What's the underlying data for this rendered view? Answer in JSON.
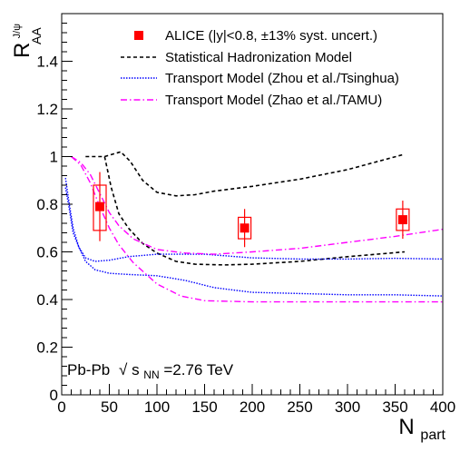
{
  "chart_data": {
    "type": "scatter",
    "xlabel": "N",
    "xlabel_sub": "part",
    "ylabel": "R",
    "ylabel_sub": "AA",
    "ylabel_sup": "J/ψ",
    "xlim": [
      0,
      400
    ],
    "ylim": [
      0,
      1.6
    ],
    "x_ticks": [
      0,
      50,
      100,
      150,
      200,
      250,
      300,
      350,
      400
    ],
    "y_ticks": [
      0,
      0.2,
      0.4,
      0.6,
      0.8,
      1,
      1.2,
      1.4
    ],
    "x_tick_labels": [
      "0",
      "50",
      "100",
      "150",
      "200",
      "250",
      "300",
      "350",
      "400"
    ],
    "y_tick_labels": [
      "0",
      "0.2",
      "0.4",
      "0.6",
      "0.8",
      "1",
      "1.2",
      "1.4"
    ],
    "grid": false,
    "legend_position": "top-right",
    "annotation": {
      "prefix": "Pb-Pb",
      "sqrt_symbol": "√",
      "s_label": "s",
      "s_sub": "NN",
      "value": "=2.76 TeV"
    },
    "colors": {
      "alice": "#ff0000",
      "shm": "#000000",
      "tsinghua": "#0000ff",
      "tamu": "#ff00ff"
    },
    "series": [
      {
        "name": "ALICE (|y|<0.8, ±13% syst. uncert.)",
        "kind": "points",
        "points": [
          {
            "x": 40,
            "y": 0.79,
            "stat_lo": 0.645,
            "stat_hi": 0.935,
            "syst_lo": 0.69,
            "syst_hi": 0.88
          },
          {
            "x": 192,
            "y": 0.7,
            "stat_lo": 0.62,
            "stat_hi": 0.78,
            "syst_lo": 0.655,
            "syst_hi": 0.745
          },
          {
            "x": 358,
            "y": 0.735,
            "stat_lo": 0.655,
            "stat_hi": 0.815,
            "syst_lo": 0.69,
            "syst_hi": 0.78
          }
        ]
      },
      {
        "name": "Statistical Hadronization Model",
        "kind": "band",
        "upper": [
          [
            25,
            1.0
          ],
          [
            45,
            1.0
          ],
          [
            62,
            1.02
          ],
          [
            72,
            0.98
          ],
          [
            85,
            0.9
          ],
          [
            100,
            0.85
          ],
          [
            120,
            0.835
          ],
          [
            140,
            0.84
          ],
          [
            160,
            0.855
          ],
          [
            200,
            0.875
          ],
          [
            250,
            0.905
          ],
          [
            300,
            0.945
          ],
          [
            360,
            1.01
          ]
        ],
        "lower": [
          [
            45,
            1.0
          ],
          [
            52,
            0.87
          ],
          [
            60,
            0.76
          ],
          [
            70,
            0.7
          ],
          [
            85,
            0.635
          ],
          [
            100,
            0.595
          ],
          [
            120,
            0.56
          ],
          [
            140,
            0.548
          ],
          [
            170,
            0.545
          ],
          [
            200,
            0.548
          ],
          [
            250,
            0.56
          ],
          [
            300,
            0.58
          ],
          [
            360,
            0.6
          ]
        ]
      },
      {
        "name": "Transport Model (Zhou et al./Tsinghua)",
        "kind": "band",
        "upper": [
          [
            4,
            0.87
          ],
          [
            8,
            0.78
          ],
          [
            12,
            0.68
          ],
          [
            18,
            0.62
          ],
          [
            25,
            0.575
          ],
          [
            35,
            0.56
          ],
          [
            50,
            0.565
          ],
          [
            70,
            0.58
          ],
          [
            100,
            0.59
          ],
          [
            150,
            0.59
          ],
          [
            200,
            0.575
          ],
          [
            250,
            0.57
          ],
          [
            300,
            0.57
          ],
          [
            350,
            0.573
          ],
          [
            400,
            0.57
          ]
        ],
        "lower": [
          [
            4,
            0.91
          ],
          [
            8,
            0.8
          ],
          [
            12,
            0.7
          ],
          [
            18,
            0.62
          ],
          [
            25,
            0.56
          ],
          [
            35,
            0.525
          ],
          [
            50,
            0.51
          ],
          [
            70,
            0.505
          ],
          [
            100,
            0.5
          ],
          [
            130,
            0.48
          ],
          [
            160,
            0.45
          ],
          [
            200,
            0.43
          ],
          [
            250,
            0.425
          ],
          [
            300,
            0.42
          ],
          [
            350,
            0.42
          ],
          [
            400,
            0.415
          ]
        ]
      },
      {
        "name": "Transport Model (Zhao et al./TAMU)",
        "kind": "band",
        "upper": [
          [
            10,
            1.0
          ],
          [
            20,
            0.975
          ],
          [
            30,
            0.925
          ],
          [
            40,
            0.845
          ],
          [
            50,
            0.765
          ],
          [
            60,
            0.71
          ],
          [
            75,
            0.655
          ],
          [
            100,
            0.61
          ],
          [
            130,
            0.595
          ],
          [
            160,
            0.59
          ],
          [
            200,
            0.6
          ],
          [
            250,
            0.615
          ],
          [
            300,
            0.64
          ],
          [
            350,
            0.665
          ],
          [
            400,
            0.695
          ]
        ],
        "lower": [
          [
            10,
            1.0
          ],
          [
            20,
            0.965
          ],
          [
            30,
            0.89
          ],
          [
            40,
            0.79
          ],
          [
            50,
            0.7
          ],
          [
            60,
            0.63
          ],
          [
            75,
            0.555
          ],
          [
            100,
            0.465
          ],
          [
            125,
            0.415
          ],
          [
            150,
            0.395
          ],
          [
            200,
            0.39
          ],
          [
            250,
            0.39
          ],
          [
            300,
            0.39
          ],
          [
            350,
            0.39
          ],
          [
            400,
            0.39
          ]
        ]
      }
    ]
  }
}
